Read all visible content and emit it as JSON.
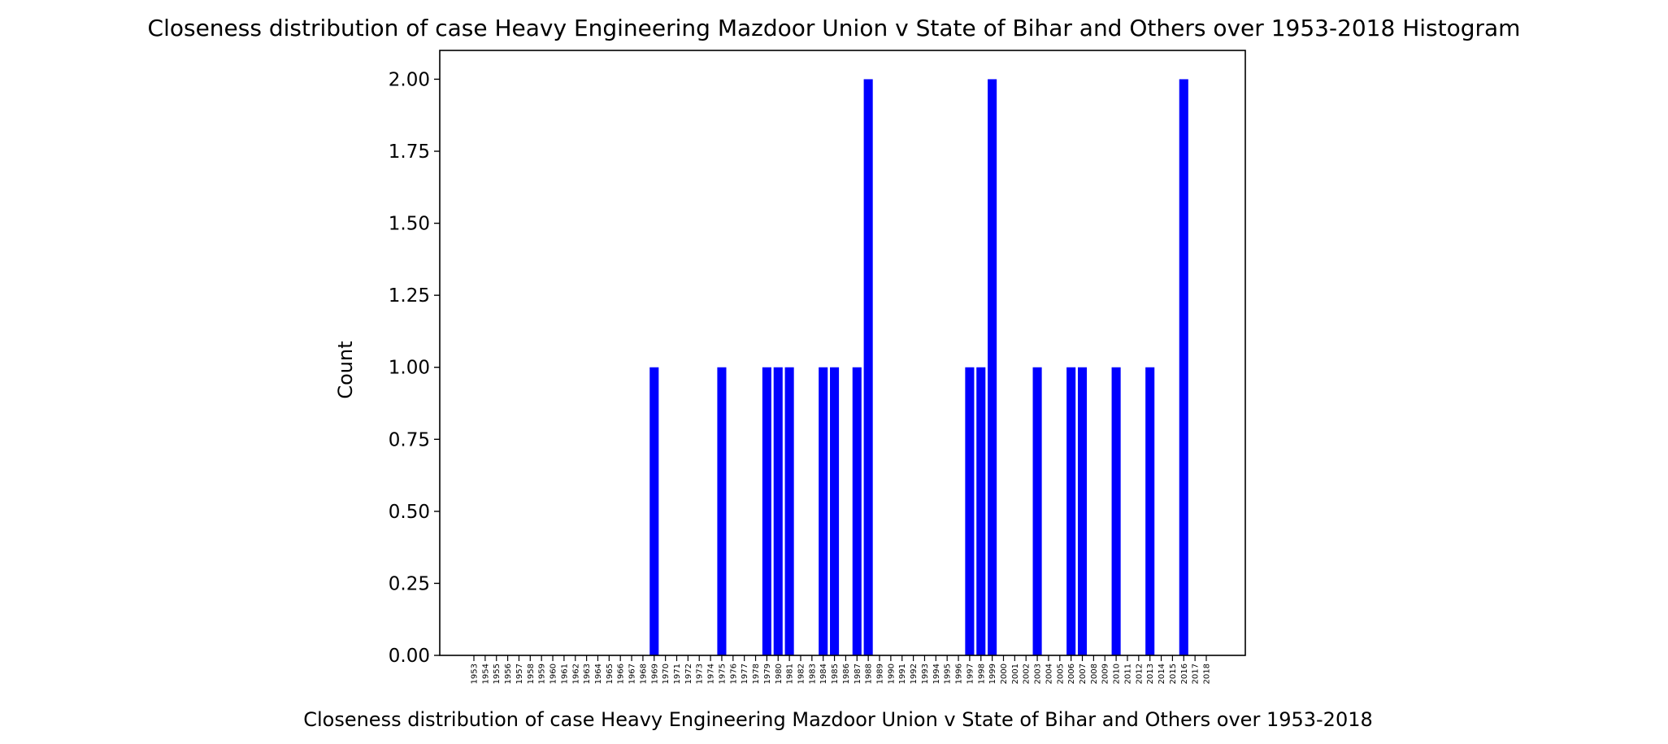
{
  "chart_data": {
    "type": "bar",
    "title": "Closeness distribution of case Heavy Engineering Mazdoor Union v State of Bihar and Others over 1953-2018 Histogram",
    "xlabel": "Closeness distribution of case Heavy Engineering Mazdoor Union v State of Bihar and Others over 1953-2018",
    "ylabel": "Count",
    "ylim": [
      0,
      2.1
    ],
    "yticks": [
      "0.00",
      "0.25",
      "0.50",
      "0.75",
      "1.00",
      "1.25",
      "1.50",
      "1.75",
      "2.00"
    ],
    "categories": [
      "1953",
      "1954",
      "1955",
      "1956",
      "1957",
      "1958",
      "1959",
      "1960",
      "1961",
      "1962",
      "1963",
      "1964",
      "1965",
      "1966",
      "1967",
      "1968",
      "1969",
      "1970",
      "1971",
      "1972",
      "1973",
      "1974",
      "1975",
      "1976",
      "1977",
      "1978",
      "1979",
      "1980",
      "1981",
      "1982",
      "1983",
      "1984",
      "1985",
      "1986",
      "1987",
      "1988",
      "1989",
      "1990",
      "1991",
      "1992",
      "1993",
      "1994",
      "1995",
      "1996",
      "1997",
      "1998",
      "1999",
      "2000",
      "2001",
      "2002",
      "2003",
      "2004",
      "2005",
      "2006",
      "2007",
      "2008",
      "2009",
      "2010",
      "2011",
      "2012",
      "2013",
      "2014",
      "2015",
      "2016",
      "2017",
      "2018"
    ],
    "values": [
      0,
      0,
      0,
      0,
      0,
      0,
      0,
      0,
      0,
      0,
      0,
      0,
      0,
      0,
      0,
      0,
      1,
      0,
      0,
      0,
      0,
      0,
      1,
      0,
      0,
      0,
      1,
      1,
      1,
      0,
      0,
      1,
      1,
      0,
      1,
      2,
      0,
      0,
      0,
      0,
      0,
      0,
      0,
      0,
      1,
      1,
      2,
      0,
      0,
      0,
      1,
      0,
      0,
      1,
      1,
      0,
      0,
      1,
      0,
      0,
      1,
      0,
      0,
      2,
      0,
      0
    ],
    "bar_color": "#0000ff",
    "grid": false
  }
}
